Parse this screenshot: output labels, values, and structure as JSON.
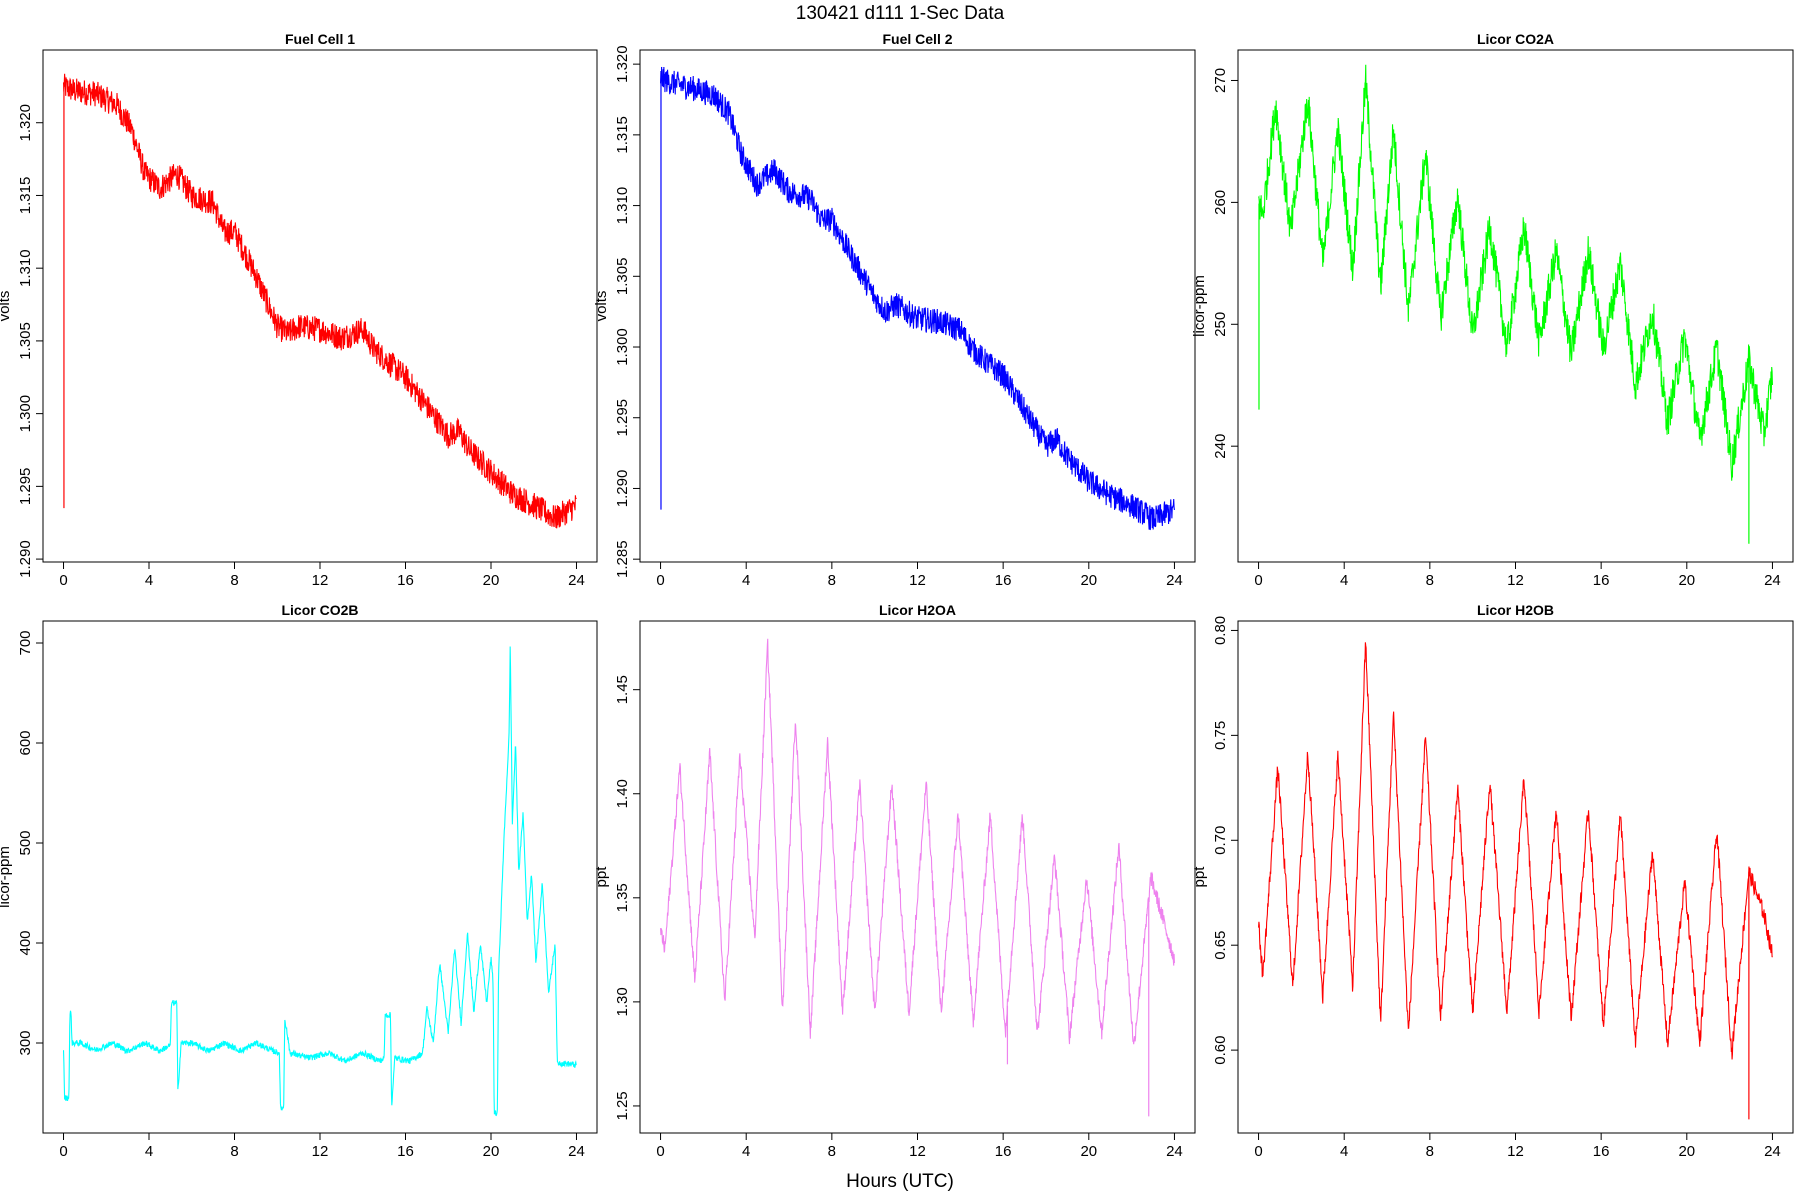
{
  "figure": {
    "title": "130421   d111   1-Sec Data",
    "xlabel": "Hours (UTC)"
  },
  "chart_data": [
    {
      "type": "line",
      "title": "Fuel Cell 1",
      "ylabel": "volts",
      "color": "#ff0000",
      "xlim": [
        -0.96,
        24.96
      ],
      "ylim": [
        1.2898,
        1.325
      ],
      "xticks": [
        0,
        4,
        8,
        12,
        16,
        20,
        24
      ],
      "yticks": [
        1.29,
        1.295,
        1.3,
        1.305,
        1.31,
        1.315,
        1.32
      ],
      "yticklabels": [
        "1.290",
        "1.295",
        "1.300",
        "1.305",
        "1.310",
        "1.315",
        "1.320"
      ],
      "noise": 0.0009,
      "spikes": [
        [
          0.02,
          1.2935
        ],
        [
          0.05,
          1.3232
        ]
      ],
      "series": [
        {
          "x": [
            0,
            0.5,
            1.5,
            2.5,
            3.2,
            3.8,
            4.5,
            5.3,
            6,
            7,
            7.5,
            8,
            9,
            10,
            10.5,
            11,
            12,
            13,
            14,
            14.5,
            15,
            16,
            17,
            18,
            18.5,
            19,
            20,
            21,
            22,
            23,
            24
          ],
          "y": [
            1.3225,
            1.3222,
            1.322,
            1.3212,
            1.3195,
            1.3165,
            1.3155,
            1.3165,
            1.315,
            1.3145,
            1.3125,
            1.3125,
            1.3095,
            1.306,
            1.3055,
            1.306,
            1.3058,
            1.3052,
            1.3058,
            1.3045,
            1.3038,
            1.3025,
            1.3005,
            1.2985,
            1.2988,
            1.2975,
            1.296,
            1.2945,
            1.2937,
            1.2928,
            1.2937
          ]
        }
      ]
    },
    {
      "type": "line",
      "title": "Fuel Cell 2",
      "ylabel": "volts",
      "color": "#0000ff",
      "xlim": [
        -0.96,
        24.96
      ],
      "ylim": [
        1.2848,
        1.321
      ],
      "xticks": [
        0,
        4,
        8,
        12,
        16,
        20,
        24
      ],
      "yticks": [
        1.285,
        1.29,
        1.295,
        1.3,
        1.305,
        1.31,
        1.315,
        1.32
      ],
      "yticklabels": [
        "1.285",
        "1.290",
        "1.295",
        "1.300",
        "1.305",
        "1.310",
        "1.315",
        "1.320"
      ],
      "noise": 0.0009,
      "spikes": [
        [
          0.02,
          1.2885
        ],
        [
          0.05,
          1.3198
        ]
      ],
      "series": [
        {
          "x": [
            0,
            0.5,
            1.5,
            2.5,
            3.2,
            3.8,
            4.5,
            5.3,
            6,
            7,
            7.5,
            8,
            9,
            10,
            10.5,
            11,
            12,
            13,
            14,
            14.5,
            15,
            16,
            17,
            18,
            18.5,
            19,
            20,
            21,
            22,
            23,
            24
          ],
          "y": [
            1.319,
            1.3187,
            1.3183,
            1.3178,
            1.3165,
            1.3135,
            1.3115,
            1.3125,
            1.311,
            1.3105,
            1.309,
            1.309,
            1.3062,
            1.3035,
            1.3025,
            1.303,
            1.302,
            1.3018,
            1.3012,
            1.3,
            1.2992,
            1.298,
            1.2955,
            1.293,
            1.2935,
            1.2922,
            1.2905,
            1.2895,
            1.2888,
            1.2878,
            1.2885
          ]
        }
      ]
    },
    {
      "type": "line",
      "title": "Licor CO2A",
      "ylabel": "licor-ppm",
      "color": "#00ff00",
      "xlim": [
        -0.96,
        24.96
      ],
      "ylim": [
        230.5,
        272.5
      ],
      "xticks": [
        0,
        4,
        8,
        12,
        16,
        20,
        24
      ],
      "yticks": [
        240,
        250,
        260,
        270
      ],
      "yticklabels": [
        "240",
        "250",
        "260",
        "270"
      ],
      "noise": 1.5,
      "spikes": [
        [
          0.02,
          243.0
        ],
        [
          0.04,
          260.0
        ],
        [
          22.9,
          232.0
        ]
      ],
      "series": [
        {
          "x": [
            0,
            0.2,
            0.8,
            1.5,
            2.3,
            3.0,
            3.7,
            4.4,
            5.0,
            5.7,
            6.3,
            7.0,
            7.8,
            8.5,
            9.3,
            10.0,
            10.8,
            11.6,
            12.4,
            13.1,
            13.9,
            14.6,
            15.4,
            16.1,
            16.9,
            17.6,
            18.4,
            19.1,
            19.9,
            20.6,
            21.4,
            22.1,
            22.9,
            23.6,
            24
          ],
          "y": [
            260,
            259,
            268,
            257.5,
            268.5,
            255,
            266,
            254.5,
            270,
            253,
            266,
            251,
            264,
            250.5,
            260.5,
            249,
            258,
            248,
            258,
            248.5,
            256,
            247.5,
            256,
            248,
            255,
            245,
            251,
            242,
            249,
            240.5,
            248,
            238.5,
            247,
            241,
            246
          ]
        }
      ]
    },
    {
      "type": "line",
      "title": "Licor CO2B",
      "ylabel": "licor-ppm",
      "color": "#00ffff",
      "xlim": [
        -0.96,
        24.96
      ],
      "ylim": [
        210,
        722
      ],
      "xticks": [
        0,
        4,
        8,
        12,
        16,
        20,
        24
      ],
      "yticks": [
        300,
        400,
        500,
        600,
        700
      ],
      "yticklabels": [
        "300",
        "400",
        "500",
        "600",
        "700"
      ],
      "noise": 3,
      "series": [
        {
          "x": [
            0,
            0.05,
            0.1,
            0.25,
            0.3,
            0.35,
            0.4,
            0.8,
            1.5,
            2.3,
            3.0,
            3.8,
            4.5,
            5.0,
            5.05,
            5.3,
            5.35,
            5.5,
            6.0,
            6.8,
            7.5,
            8.3,
            9.0,
            9.8,
            10.1,
            10.15,
            10.3,
            10.35,
            10.6,
            11.5,
            12.4,
            13.2,
            14.0,
            14.8,
            15.0,
            15.05,
            15.3,
            15.35,
            15.5,
            16.2,
            16.8,
            17.0,
            17.3,
            17.6,
            18.0,
            18.3,
            18.6,
            18.9,
            19.2,
            19.5,
            19.8,
            20.0,
            20.1,
            20.15,
            20.3,
            20.35,
            20.6,
            20.85,
            20.9,
            21.0,
            21.15,
            21.3,
            21.5,
            21.7,
            21.9,
            22.1,
            22.4,
            22.7,
            23.0,
            23.1,
            23.3,
            24
          ],
          "y": [
            295,
            245,
            245,
            245,
            330,
            330,
            300,
            300,
            293,
            300,
            292,
            300,
            292,
            298,
            340,
            340,
            250,
            300,
            300,
            292,
            300,
            292,
            300,
            292,
            290,
            235,
            235,
            325,
            290,
            285,
            290,
            282,
            290,
            282,
            285,
            328,
            328,
            236,
            285,
            282,
            290,
            335,
            300,
            380,
            310,
            395,
            320,
            410,
            330,
            400,
            340,
            385,
            360,
            230,
            230,
            365,
            500,
            610,
            700,
            520,
            600,
            470,
            530,
            420,
            470,
            380,
            460,
            350,
            400,
            280,
            280,
            278
          ]
        }
      ]
    },
    {
      "type": "line",
      "title": "Licor H2OA",
      "ylabel": "ppt",
      "color": "#ee82ee",
      "xlim": [
        -0.96,
        24.96
      ],
      "ylim": [
        1.237,
        1.483
      ],
      "xticks": [
        0,
        4,
        8,
        12,
        16,
        20,
        24
      ],
      "yticks": [
        1.25,
        1.3,
        1.35,
        1.4,
        1.45
      ],
      "yticklabels": [
        "1.25",
        "1.30",
        "1.35",
        "1.40",
        "1.45"
      ],
      "noise": 0.004,
      "spikes": [
        [
          22.8,
          1.245
        ],
        [
          16.2,
          1.27
        ]
      ],
      "series": [
        {
          "x": [
            0,
            0.2,
            0.9,
            1.6,
            2.3,
            3.0,
            3.7,
            4.4,
            5.0,
            5.7,
            6.3,
            7.0,
            7.8,
            8.5,
            9.3,
            10.0,
            10.8,
            11.6,
            12.4,
            13.1,
            13.9,
            14.6,
            15.4,
            16.1,
            16.9,
            17.6,
            18.4,
            19.1,
            19.9,
            20.6,
            21.4,
            22.1,
            22.9,
            23.6,
            24
          ],
          "y": [
            1.335,
            1.325,
            1.413,
            1.31,
            1.42,
            1.3,
            1.418,
            1.33,
            1.472,
            1.295,
            1.438,
            1.285,
            1.425,
            1.295,
            1.405,
            1.295,
            1.405,
            1.295,
            1.405,
            1.295,
            1.39,
            1.29,
            1.39,
            1.285,
            1.39,
            1.285,
            1.37,
            1.283,
            1.36,
            1.285,
            1.375,
            1.278,
            1.36,
            1.335,
            1.32
          ]
        }
      ]
    },
    {
      "type": "line",
      "title": "Licor H2OB",
      "ylabel": "ppt",
      "color": "#ff0000",
      "xlim": [
        -0.96,
        24.96
      ],
      "ylim": [
        0.5605,
        0.8045
      ],
      "xticks": [
        0,
        4,
        8,
        12,
        16,
        20,
        24
      ],
      "yticks": [
        0.6,
        0.65,
        0.7,
        0.75,
        0.8
      ],
      "yticklabels": [
        "0.60",
        "0.65",
        "0.70",
        "0.75",
        "0.80"
      ],
      "noise": 0.004,
      "spikes": [
        [
          22.9,
          0.567
        ]
      ],
      "series": [
        {
          "x": [
            0,
            0.2,
            0.9,
            1.6,
            2.3,
            3.0,
            3.7,
            4.4,
            5.0,
            5.7,
            6.3,
            7.0,
            7.8,
            8.5,
            9.3,
            10.0,
            10.8,
            11.6,
            12.4,
            13.1,
            13.9,
            14.6,
            15.4,
            16.1,
            16.9,
            17.6,
            18.4,
            19.1,
            19.9,
            20.6,
            21.4,
            22.1,
            22.9,
            23.6,
            24
          ],
          "y": [
            0.66,
            0.635,
            0.735,
            0.63,
            0.742,
            0.625,
            0.74,
            0.63,
            0.795,
            0.612,
            0.76,
            0.608,
            0.75,
            0.615,
            0.725,
            0.617,
            0.728,
            0.618,
            0.73,
            0.618,
            0.715,
            0.615,
            0.715,
            0.612,
            0.712,
            0.603,
            0.695,
            0.603,
            0.68,
            0.603,
            0.705,
            0.598,
            0.685,
            0.665,
            0.645
          ]
        }
      ]
    }
  ]
}
